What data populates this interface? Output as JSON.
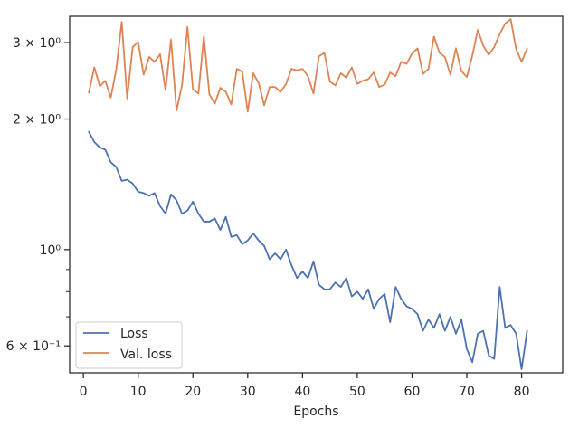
{
  "chart_data": {
    "type": "line",
    "title": "",
    "xlabel": "Epochs",
    "ylabel": "",
    "yscale": "log",
    "xlim": [
      -2.5,
      87.5
    ],
    "ylim": [
      0.52,
      3.45
    ],
    "x_ticks": [
      0,
      10,
      20,
      30,
      40,
      50,
      60,
      70,
      80
    ],
    "x_tick_labels": [
      "0",
      "10",
      "20",
      "30",
      "40",
      "50",
      "60",
      "70",
      "80"
    ],
    "y_ticks": [
      {
        "value": 0.6,
        "label": "6 × 10⁻¹"
      },
      {
        "value": 1.0,
        "label": "10⁰"
      },
      {
        "value": 2.0,
        "label": "2 × 10⁰"
      },
      {
        "value": 3.0,
        "label": "3 × 10⁰"
      }
    ],
    "y_minor_ticks": [
      0.7,
      0.8,
      0.9
    ],
    "grid": false,
    "legend_position": "lower-left",
    "x": [
      1,
      2,
      3,
      4,
      5,
      6,
      7,
      8,
      9,
      10,
      11,
      12,
      13,
      14,
      15,
      16,
      17,
      18,
      19,
      20,
      21,
      22,
      23,
      24,
      25,
      26,
      27,
      28,
      29,
      30,
      31,
      32,
      33,
      34,
      35,
      36,
      37,
      38,
      39,
      40,
      41,
      42,
      43,
      44,
      45,
      46,
      47,
      48,
      49,
      50,
      51,
      52,
      53,
      54,
      55,
      56,
      57,
      58,
      59,
      60,
      61,
      62,
      63,
      64,
      65,
      66,
      67,
      68,
      69,
      70,
      71,
      72,
      73,
      74,
      75,
      76,
      77,
      78,
      79,
      80,
      81
    ],
    "series": [
      {
        "name": "Loss",
        "color": "#4c72b0",
        "values": [
          1.87,
          1.77,
          1.72,
          1.7,
          1.59,
          1.55,
          1.44,
          1.45,
          1.42,
          1.36,
          1.35,
          1.33,
          1.35,
          1.26,
          1.21,
          1.34,
          1.3,
          1.21,
          1.23,
          1.29,
          1.21,
          1.16,
          1.16,
          1.18,
          1.11,
          1.19,
          1.07,
          1.08,
          1.03,
          1.05,
          1.09,
          1.05,
          1.02,
          0.95,
          0.98,
          0.95,
          1.0,
          0.92,
          0.86,
          0.89,
          0.86,
          0.94,
          0.83,
          0.81,
          0.81,
          0.84,
          0.82,
          0.86,
          0.78,
          0.8,
          0.77,
          0.81,
          0.73,
          0.77,
          0.79,
          0.68,
          0.82,
          0.77,
          0.74,
          0.73,
          0.71,
          0.65,
          0.69,
          0.66,
          0.71,
          0.65,
          0.7,
          0.64,
          0.69,
          0.59,
          0.55,
          0.64,
          0.65,
          0.57,
          0.56,
          0.82,
          0.66,
          0.67,
          0.64,
          0.53,
          0.65
        ]
      },
      {
        "name": "Val. loss",
        "color": "#dd8452",
        "values": [
          2.3,
          2.63,
          2.38,
          2.45,
          2.24,
          2.6,
          3.35,
          2.23,
          2.93,
          3.01,
          2.53,
          2.78,
          2.71,
          2.82,
          2.33,
          3.05,
          2.09,
          2.39,
          3.26,
          2.34,
          2.29,
          3.1,
          2.28,
          2.17,
          2.36,
          2.31,
          2.16,
          2.61,
          2.57,
          2.08,
          2.55,
          2.42,
          2.15,
          2.37,
          2.37,
          2.31,
          2.41,
          2.61,
          2.59,
          2.61,
          2.51,
          2.29,
          2.79,
          2.84,
          2.44,
          2.39,
          2.55,
          2.49,
          2.63,
          2.41,
          2.45,
          2.47,
          2.56,
          2.37,
          2.4,
          2.56,
          2.51,
          2.71,
          2.68,
          2.83,
          2.91,
          2.54,
          2.61,
          3.1,
          2.84,
          2.78,
          2.53,
          2.91,
          2.58,
          2.5,
          2.8,
          3.21,
          2.95,
          2.81,
          2.93,
          3.14,
          3.32,
          3.4,
          2.9,
          2.71,
          2.91
        ]
      }
    ]
  }
}
